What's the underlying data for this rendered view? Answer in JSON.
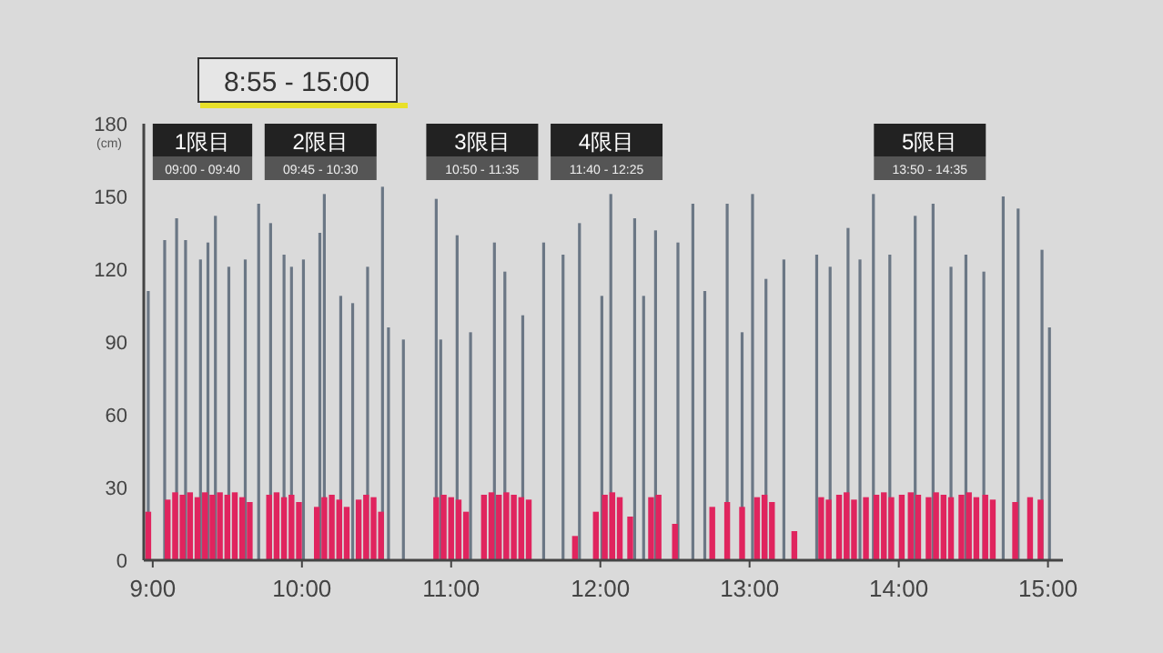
{
  "chart_data": {
    "type": "bar",
    "title": "8:55 - 15:00",
    "ylabel": "(cm)",
    "xlim": [
      8.94,
      15.1
    ],
    "ylim": [
      0,
      180
    ],
    "xticks": [
      {
        "value": 9,
        "label": "9:00"
      },
      {
        "value": 10,
        "label": "10:00"
      },
      {
        "value": 11,
        "label": "11:00"
      },
      {
        "value": 12,
        "label": "12:00"
      },
      {
        "value": 13,
        "label": "13:00"
      },
      {
        "value": 14,
        "label": "14:00"
      },
      {
        "value": 15,
        "label": "15:00"
      }
    ],
    "yticks": [
      0,
      30,
      60,
      90,
      120,
      150,
      180
    ],
    "bands": [
      {
        "axis": "x",
        "from": 9.0,
        "to": 9.6667,
        "label": "1限目\n09:00 - 09:40"
      },
      {
        "axis": "x",
        "from": 9.75,
        "to": 10.5,
        "label": "2限目\n09:45 - 10:30"
      },
      {
        "axis": "x",
        "from": 10.8333,
        "to": 11.5833,
        "label": "3限目\n10:50 - 11:35"
      },
      {
        "axis": "x",
        "from": 11.6667,
        "to": 12.4167,
        "label": "4限目\n11:40 - 12:25"
      },
      {
        "axis": "x",
        "from": 13.8333,
        "to": 14.5833,
        "label": "5限目\n13:50 - 14:35"
      }
    ],
    "series": [
      {
        "color": "#6b7785",
        "x": [
          8.97,
          9.08,
          9.16,
          9.22,
          9.32,
          9.37,
          9.42,
          9.51,
          9.62,
          9.71,
          9.79,
          9.88,
          9.93,
          10.01,
          10.12,
          10.15,
          10.26,
          10.34,
          10.44,
          10.54,
          10.58,
          10.68,
          10.9,
          10.93,
          11.04,
          11.13,
          11.29,
          11.36,
          11.48,
          11.62,
          11.75,
          11.86,
          12.01,
          12.07,
          12.23,
          12.29,
          12.37,
          12.52,
          12.62,
          12.7,
          12.85,
          12.95,
          13.02,
          13.11,
          13.23,
          13.45,
          13.54,
          13.66,
          13.74,
          13.83,
          13.94,
          14.11,
          14.23,
          14.35,
          14.45,
          14.57,
          14.7,
          14.8,
          14.96,
          15.01
        ],
        "values": [
          111,
          132,
          141,
          132,
          124,
          131,
          142,
          121,
          124,
          147,
          139,
          126,
          121,
          124,
          135,
          151,
          109,
          106,
          121,
          154,
          96,
          91,
          149,
          91,
          134,
          94,
          131,
          119,
          101,
          131,
          126,
          139,
          109,
          151,
          141,
          109,
          136,
          131,
          147,
          111,
          147,
          94,
          151,
          116,
          124,
          126,
          121,
          137,
          124,
          151,
          126,
          142,
          147,
          121,
          126,
          119,
          150,
          145,
          128,
          96
        ]
      },
      {
        "color": "#e0245e",
        "x": [
          8.97,
          9.1,
          9.15,
          9.2,
          9.25,
          9.3,
          9.35,
          9.4,
          9.45,
          9.5,
          9.55,
          9.6,
          9.65,
          9.78,
          9.83,
          9.88,
          9.93,
          9.98,
          10.1,
          10.15,
          10.2,
          10.25,
          10.3,
          10.38,
          10.43,
          10.48,
          10.53,
          10.9,
          10.95,
          11.0,
          11.05,
          11.1,
          11.22,
          11.27,
          11.32,
          11.37,
          11.42,
          11.47,
          11.52,
          11.83,
          11.97,
          12.03,
          12.08,
          12.13,
          12.2,
          12.34,
          12.39,
          12.5,
          12.75,
          12.85,
          12.95,
          13.05,
          13.1,
          13.15,
          13.3,
          13.48,
          13.53,
          13.6,
          13.65,
          13.7,
          13.78,
          13.85,
          13.9,
          13.95,
          14.02,
          14.08,
          14.13,
          14.2,
          14.25,
          14.3,
          14.35,
          14.42,
          14.47,
          14.52,
          14.58,
          14.63,
          14.78,
          14.88,
          14.95
        ],
        "values": [
          20,
          25,
          28,
          27,
          28,
          26,
          28,
          27,
          28,
          27,
          28,
          26,
          24,
          27,
          28,
          26,
          27,
          24,
          22,
          26,
          27,
          25,
          22,
          25,
          27,
          26,
          20,
          26,
          27,
          26,
          25,
          20,
          27,
          28,
          27,
          28,
          27,
          26,
          25,
          10,
          20,
          27,
          28,
          26,
          18,
          26,
          27,
          15,
          22,
          24,
          22,
          26,
          27,
          24,
          12,
          26,
          25,
          27,
          28,
          25,
          26,
          27,
          28,
          26,
          27,
          28,
          27,
          26,
          28,
          27,
          26,
          27,
          28,
          26,
          27,
          25,
          24,
          26,
          25
        ]
      }
    ]
  }
}
